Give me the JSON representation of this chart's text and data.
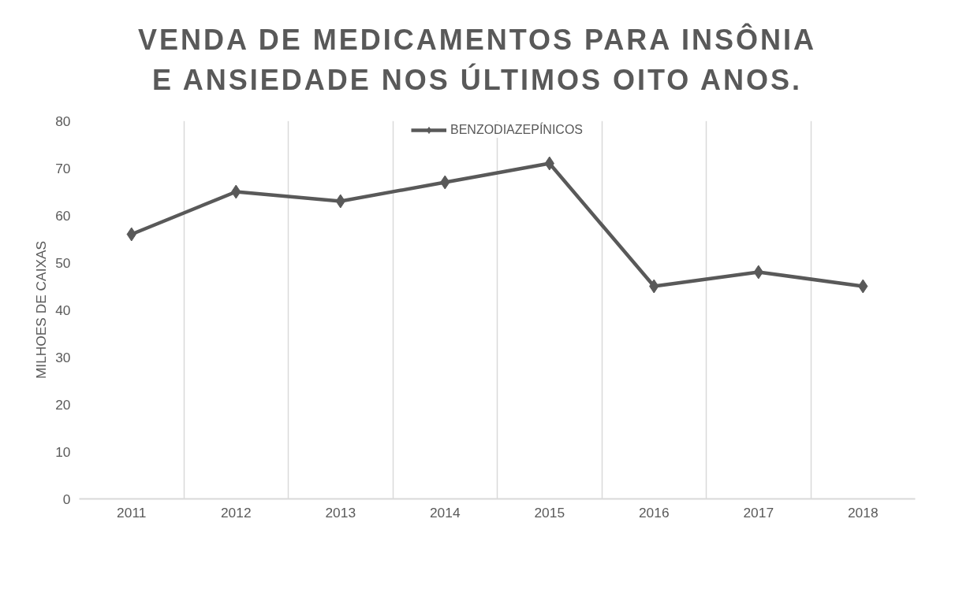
{
  "chart_data": {
    "type": "line",
    "title": "VENDA DE MEDICAMENTOS PARA INSÔNIA  E ANSIEDADE NOS ÚLTIMOS OITO ANOS.",
    "ylabel": "MILHOES DE CAIXAS",
    "categories": [
      "2011",
      "2012",
      "2013",
      "2014",
      "2015",
      "2016",
      "2017",
      "2018"
    ],
    "series": [
      {
        "name": "BENZODIAZEPÍNICOS",
        "color": "#595959",
        "values": [
          56,
          65,
          63,
          67,
          71,
          45,
          48,
          45
        ]
      }
    ],
    "ylim": [
      0,
      80
    ],
    "yticks": [
      0,
      10,
      20,
      30,
      40,
      50,
      60,
      70,
      80
    ],
    "grid": "x",
    "legend": "top",
    "marker": "diamond",
    "line_style": "solid"
  }
}
